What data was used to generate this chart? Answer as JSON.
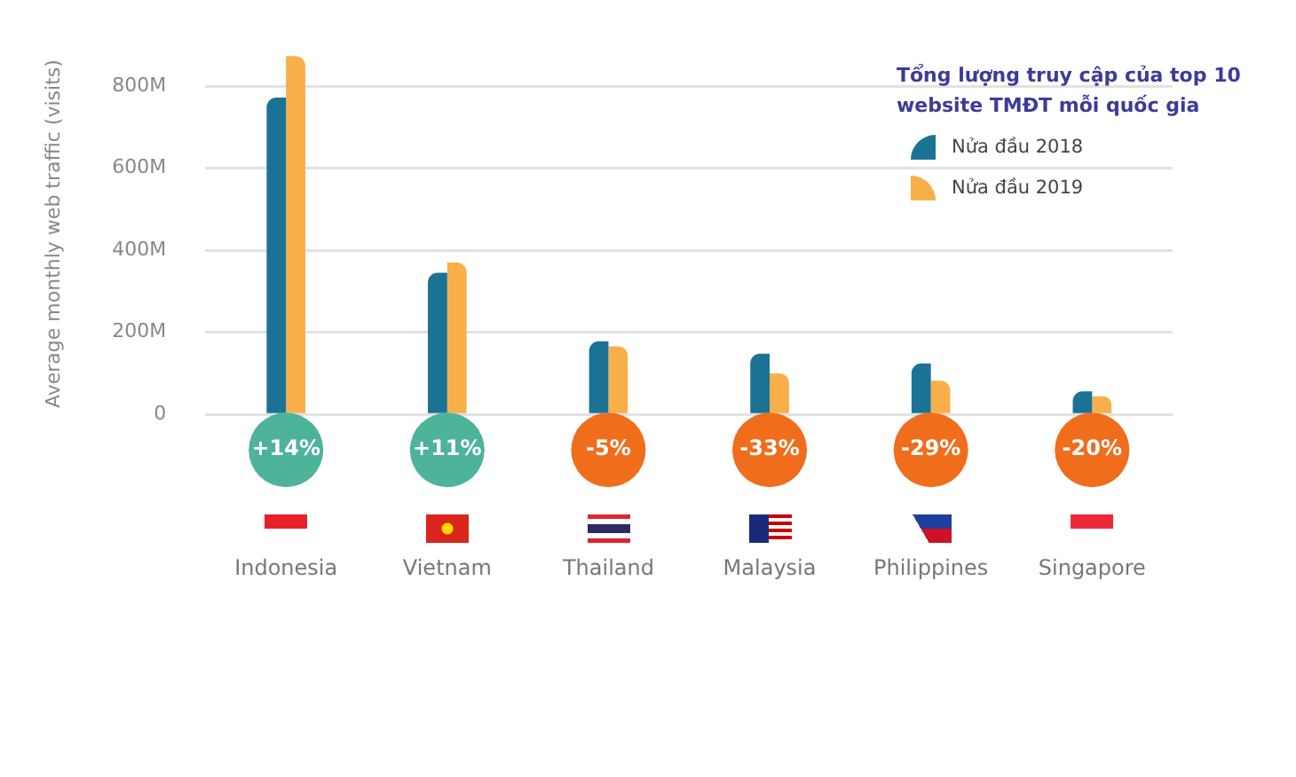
{
  "chart_data": {
    "type": "bar",
    "legend_title": "Tổng lượng truy cập của top 10 website TMĐT mỗi quốc gia",
    "ylabel": "Average monthly web traffic (visits)",
    "categories": [
      "Indonesia",
      "Vietnam",
      "Thailand",
      "Malaysia",
      "Philippines",
      "Singapore"
    ],
    "series": [
      {
        "name": "Nửa đầu 2018",
        "color": "#1a7395",
        "values": [
          772,
          345,
          178,
          148,
          124,
          56
        ]
      },
      {
        "name": "Nửa đầu 2019",
        "color": "#f8af4a",
        "values": [
          873,
          370,
          166,
          100,
          82,
          44
        ]
      }
    ],
    "ylim": [
      0,
      880
    ],
    "yticks": [
      {
        "value": 0,
        "label": "0"
      },
      {
        "value": 200,
        "label": "200M"
      },
      {
        "value": 400,
        "label": "400M"
      },
      {
        "value": 600,
        "label": "600M"
      },
      {
        "value": 800,
        "label": "800M"
      }
    ],
    "grid": "y",
    "legend": "top right",
    "annotations": [
      {
        "text": "+14%",
        "x": "Indonesia"
      },
      {
        "text": "+11%",
        "x": "Vietnam"
      },
      {
        "text": "-5%",
        "x": "Thailand"
      },
      {
        "text": "-33%",
        "x": "Malaysia"
      },
      {
        "text": "-29%",
        "x": "Philippines"
      },
      {
        "text": "-20%",
        "x": "Singapore"
      }
    ]
  }
}
